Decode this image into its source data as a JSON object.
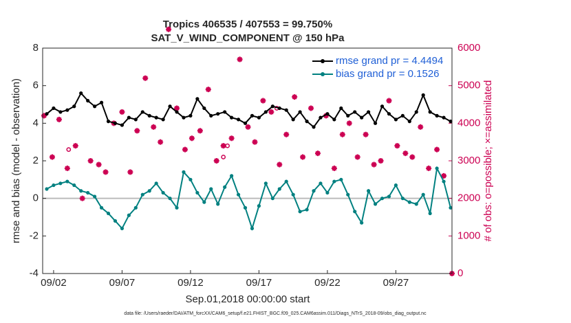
{
  "chart_data": {
    "type": "line",
    "title": "Tropics 406535 / 407553 = 99.750%",
    "subtitle": "SAT_V_WIND_COMPONENT @ 150 hPa",
    "xlabel": "Sep.01,2018 00:00:00 start",
    "ylabel": "rmse and bias (model - observation)",
    "y2label": "# of obs: o=possible; ×=assimilated",
    "footnote": "data file: /Users/raeder/DAI/ATM_forcXX/CAM6_setup/f.e21.FHIST_BGC.f09_025.CAM6assim.011/Diags_NTrS_2018-09/obs_diag_output.nc",
    "legend": "top-right",
    "xlim": [
      0.2,
      30.1
    ],
    "xticks": [
      {
        "value": 1,
        "label": "09/02"
      },
      {
        "value": 6,
        "label": "09/07"
      },
      {
        "value": 11,
        "label": "09/12"
      },
      {
        "value": 16,
        "label": "09/17"
      },
      {
        "value": 21,
        "label": "09/22"
      },
      {
        "value": 26,
        "label": "09/27"
      }
    ],
    "ylim": [
      -4,
      8
    ],
    "yticks": [
      -4,
      -2,
      0,
      2,
      4,
      6,
      8
    ],
    "y2lim": [
      0,
      6000
    ],
    "y2ticks": [
      0,
      1000,
      2000,
      3000,
      4000,
      5000,
      6000
    ],
    "x": [
      0.5,
      1.0,
      1.5,
      2.0,
      2.5,
      3.0,
      3.5,
      4.0,
      4.5,
      5.0,
      5.5,
      6.0,
      6.5,
      7.0,
      7.5,
      8.0,
      8.5,
      9.0,
      9.5,
      10.0,
      10.5,
      11.0,
      11.5,
      12.0,
      12.5,
      13.0,
      13.5,
      14.0,
      14.5,
      15.0,
      15.5,
      16.0,
      16.5,
      17.0,
      17.5,
      18.0,
      18.5,
      19.0,
      19.5,
      20.0,
      20.5,
      21.0,
      21.5,
      22.0,
      22.5,
      23.0,
      23.5,
      24.0,
      24.5,
      25.0,
      25.5,
      26.0,
      26.5,
      27.0,
      27.5,
      28.0,
      28.5,
      29.0,
      29.5,
      30.0
    ],
    "series": [
      {
        "name": "rmse grand pr = 4.4494",
        "color": "#000000",
        "values": [
          4.5,
          4.8,
          4.6,
          4.7,
          4.9,
          5.6,
          5.2,
          4.9,
          5.1,
          4.1,
          4.0,
          3.9,
          4.3,
          4.2,
          4.6,
          4.4,
          4.3,
          4.2,
          4.9,
          4.6,
          4.3,
          4.4,
          5.3,
          4.8,
          4.4,
          4.5,
          4.6,
          4.3,
          4.2,
          4.0,
          4.4,
          4.3,
          4.6,
          4.9,
          4.8,
          4.7,
          4.2,
          4.6,
          4.1,
          3.8,
          4.3,
          4.5,
          4.2,
          4.8,
          4.4,
          4.6,
          4.3,
          4.6,
          4.0,
          4.9,
          4.5,
          4.2,
          4.4,
          4.1,
          4.6,
          5.5,
          4.6,
          4.4,
          4.3,
          4.1
        ]
      },
      {
        "name": "bias grand pr = 0.1526",
        "color": "#008080",
        "values": [
          0.5,
          0.7,
          0.8,
          0.9,
          0.7,
          0.4,
          0.3,
          0.1,
          -0.5,
          -0.8,
          -1.2,
          -1.6,
          -0.9,
          -0.5,
          0.2,
          0.4,
          0.8,
          0.3,
          0.0,
          -0.5,
          1.4,
          1.0,
          0.3,
          -0.2,
          0.5,
          -0.3,
          0.6,
          1.2,
          0.2,
          -0.5,
          -1.6,
          -0.4,
          0.8,
          0.0,
          0.5,
          0.9,
          0.2,
          -0.7,
          -0.6,
          0.4,
          0.8,
          0.3,
          0.9,
          1.0,
          0.2,
          -0.7,
          -1.3,
          0.4,
          -0.3,
          0.0,
          0.1,
          0.7,
          0.0,
          -0.2,
          -0.3,
          0.2,
          -0.8,
          1.6,
          0.9,
          -0.5
        ]
      }
    ],
    "obs_series": [
      {
        "kind": "assimilated",
        "color": "#cc0052",
        "axis": "y2",
        "x": [
          0.3,
          0.9,
          1.4,
          2.0,
          2.6,
          3.1,
          3.7,
          4.3,
          4.8,
          5.4,
          6.0,
          6.6,
          7.1,
          7.7,
          8.3,
          8.8,
          9.4,
          10.0,
          10.6,
          11.1,
          11.7,
          12.3,
          12.9,
          13.4,
          14.0,
          14.6,
          15.2,
          15.7,
          16.3,
          16.9,
          17.5,
          18.0,
          18.6,
          19.2,
          19.8,
          20.3,
          20.9,
          21.5,
          22.1,
          22.6,
          23.2,
          23.8,
          24.4,
          24.9,
          25.5,
          26.1,
          26.7,
          27.2,
          27.8,
          28.4,
          29.0,
          29.5,
          30.1
        ],
        "values": [
          4200,
          3100,
          4100,
          2800,
          3400,
          2000,
          3000,
          2900,
          2700,
          4000,
          4300,
          2700,
          3800,
          5200,
          3900,
          3500,
          6500,
          4400,
          3300,
          3600,
          3800,
          4900,
          3000,
          3400,
          3600,
          5700,
          3900,
          3500,
          4600,
          4300,
          2900,
          3700,
          4700,
          3100,
          4400,
          3200,
          4200,
          2800,
          3700,
          4000,
          3100,
          3700,
          2900,
          3000,
          4600,
          3400,
          3200,
          3100,
          3900,
          2800,
          3300,
          2600,
          0
        ]
      },
      {
        "kind": "possible",
        "color": "#cc0052",
        "axis": "y2",
        "x": [
          2.1,
          13.4,
          13.7,
          17.3
        ],
        "values": [
          3300,
          3100,
          3400,
          4400
        ]
      }
    ],
    "zero_line": true
  }
}
